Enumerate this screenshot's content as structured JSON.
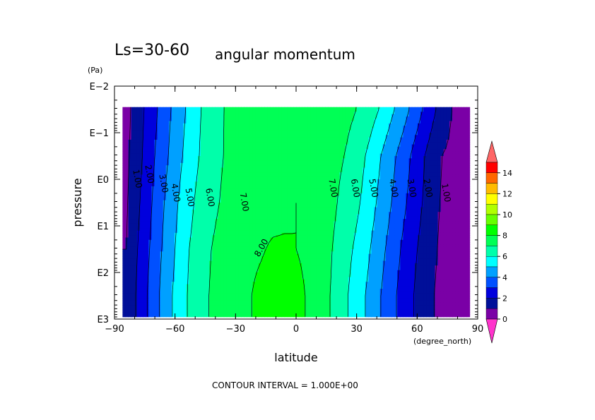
{
  "header": {
    "season_label": "Ls=30-60",
    "variable_title": "angular momentum"
  },
  "footer": {
    "contour_interval": "CONTOUR INTERVAL = 1.000E+00"
  },
  "colorbar": {
    "ticks": [
      "0",
      "2",
      "4",
      "6",
      "8",
      "10",
      "12",
      "14"
    ],
    "colors": [
      "#ff33cc",
      "#7a00a6",
      "#000f99",
      "#0000dd",
      "#0050ff",
      "#00a0ff",
      "#00ffff",
      "#00ffaa",
      "#00ff55",
      "#00ff00",
      "#66ff00",
      "#b0ff00",
      "#ffff00",
      "#ffbb00",
      "#ff6600",
      "#ff0000",
      "#ff6666"
    ]
  },
  "chart_data": {
    "type": "heatmap",
    "title": "angular momentum",
    "subtitle": "Ls=30-60",
    "xlabel": "latitude",
    "x_unit": "(degree_north)",
    "ylabel": "pressure",
    "y_unit": "(Pa)",
    "xlim": [
      -90,
      90
    ],
    "ylim_log10": [
      3,
      -2
    ],
    "x_ticks": [
      "−90",
      "−60",
      "−30",
      "0",
      "30",
      "60",
      "90"
    ],
    "y_ticks": [
      "E−2",
      "E−1",
      "E0",
      "E1",
      "E2",
      "E3"
    ],
    "contour_interval": 1.0,
    "contour_labels": [
      "1.00",
      "2.00",
      "3.00",
      "4.00",
      "5.00",
      "6.00",
      "7.00",
      "8.00"
    ],
    "latitude": [
      -84,
      -78,
      -72,
      -66,
      -60,
      -54,
      -48,
      -42,
      -36,
      -30,
      -24,
      -18,
      -12,
      -6,
      0,
      6,
      12,
      18,
      24,
      30,
      36,
      42,
      48,
      54,
      60,
      66,
      72,
      78,
      84
    ],
    "log10_pressure": [
      -1.5,
      -0.5,
      0.5,
      1.5,
      2.5
    ],
    "values": [
      [
        0.7,
        1.6,
        2.5,
        3.4,
        4.3,
        5.1,
        5.9,
        6.5,
        7.0,
        7.2,
        7.3,
        7.35,
        7.4,
        7.4,
        7.5,
        7.4,
        7.4,
        7.35,
        7.3,
        7.0,
        6.5,
        5.9,
        5.1,
        4.3,
        3.4,
        2.5,
        1.6,
        0.9,
        0.7
      ],
      [
        0.8,
        1.7,
        2.7,
        3.6,
        4.5,
        5.3,
        6.0,
        6.7,
        7.0,
        7.3,
        7.4,
        7.45,
        7.5,
        7.6,
        7.8,
        7.5,
        7.4,
        7.3,
        7.0,
        6.5,
        5.8,
        5.0,
        4.2,
        3.4,
        2.5,
        1.7,
        1.0,
        0.8,
        0.7
      ],
      [
        0.9,
        1.9,
        2.9,
        3.9,
        4.8,
        5.6,
        6.3,
        6.8,
        7.1,
        7.4,
        7.5,
        7.6,
        7.7,
        7.8,
        8.0,
        7.7,
        7.5,
        7.2,
        6.7,
        6.2,
        5.5,
        4.7,
        3.9,
        3.1,
        2.3,
        1.6,
        0.9,
        0.7,
        0.6
      ],
      [
        1.0,
        2.1,
        3.1,
        4.1,
        5.0,
        5.9,
        6.5,
        7.0,
        7.3,
        7.6,
        7.8,
        7.9,
        8.1,
        8.1,
        8.0,
        7.8,
        7.5,
        7.0,
        6.4,
        5.8,
        5.1,
        4.3,
        3.5,
        2.7,
        2.0,
        1.4,
        0.8,
        0.6,
        0.5
      ],
      [
        1.1,
        2.3,
        3.3,
        4.3,
        5.2,
        6.0,
        6.6,
        7.1,
        7.4,
        7.7,
        7.9,
        8.2,
        8.4,
        8.5,
        8.3,
        7.9,
        7.4,
        6.9,
        6.2,
        5.5,
        4.8,
        4.0,
        3.2,
        2.5,
        1.8,
        1.2,
        0.7,
        0.5,
        0.4
      ]
    ]
  }
}
